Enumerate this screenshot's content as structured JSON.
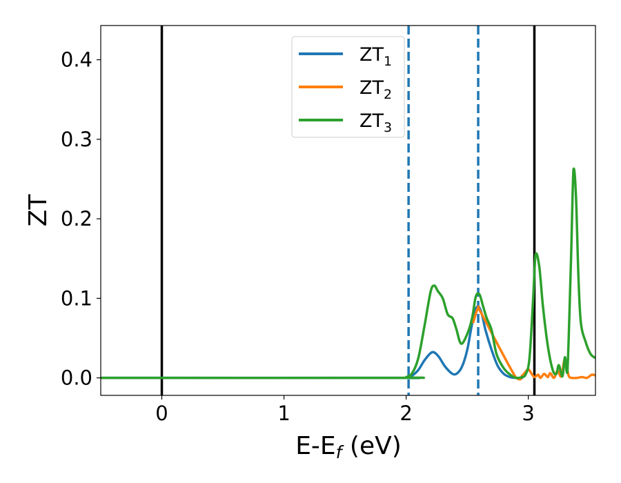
{
  "chart_data": {
    "type": "line",
    "xlabel": "E-E",
    "xlabel_sub": "f",
    "xlabel_unit": " (eV)",
    "ylabel": "ZT",
    "xlim": [
      -0.5,
      3.55
    ],
    "ylim": [
      -0.022,
      0.443
    ],
    "xticks": [
      0,
      1,
      2,
      3
    ],
    "xtick_labels": [
      "0",
      "1",
      "2",
      "3"
    ],
    "yticks": [
      0.0,
      0.1,
      0.2,
      0.3,
      0.4
    ],
    "ytick_labels": [
      "0.0",
      "0.1",
      "0.2",
      "0.3",
      "0.4"
    ],
    "grid": false,
    "legend_position": "top-center",
    "vertical_lines": [
      {
        "x": 0.0,
        "style": "solid",
        "color": "#000000"
      },
      {
        "x": 3.05,
        "style": "solid",
        "color": "#000000"
      },
      {
        "x": 2.02,
        "style": "dashed",
        "color": "#1f77b4"
      },
      {
        "x": 2.59,
        "style": "dashed",
        "color": "#1f77b4"
      }
    ],
    "series": [
      {
        "name": "ZT",
        "name_sub": "1",
        "color": "#1f77b4",
        "x": [
          -0.5,
          1.9,
          2.0,
          2.05,
          2.1,
          2.15,
          2.2,
          2.23,
          2.27,
          2.32,
          2.38,
          2.42,
          2.46,
          2.5,
          2.53,
          2.56,
          2.59,
          2.62,
          2.65,
          2.7,
          2.75,
          2.8,
          2.85,
          2.9,
          2.95
        ],
        "y": [
          0.0,
          0.0,
          0.0,
          0.003,
          0.01,
          0.022,
          0.031,
          0.032,
          0.026,
          0.014,
          0.005,
          0.006,
          0.015,
          0.035,
          0.06,
          0.082,
          0.09,
          0.08,
          0.06,
          0.035,
          0.015,
          0.005,
          0.001,
          0.0,
          0.0
        ]
      },
      {
        "name": "ZT",
        "name_sub": "2",
        "color": "#ff7f0e",
        "x": [
          2.55,
          2.59,
          2.62,
          2.9,
          2.95,
          2.98,
          3.0,
          3.02,
          3.05,
          3.08,
          3.1,
          3.13,
          3.16,
          3.18,
          3.21,
          3.24,
          3.27,
          3.3,
          3.33,
          3.36,
          3.4,
          3.44,
          3.48,
          3.52,
          3.55
        ],
        "y": [
          0.07,
          0.088,
          0.08,
          0.0,
          0.003,
          0.008,
          0.011,
          0.007,
          0.001,
          0.004,
          0.0,
          0.005,
          0.001,
          0.006,
          0.0,
          0.009,
          0.002,
          0.024,
          0.003,
          0.0,
          0.0,
          0.001,
          0.0,
          0.004,
          0.003
        ]
      },
      {
        "name": "ZT",
        "name_sub": "3",
        "color": "#2ca02c",
        "x": [
          -0.5,
          1.95,
          2.0,
          2.05,
          2.1,
          2.15,
          2.2,
          2.23,
          2.26,
          2.3,
          2.34,
          2.38,
          2.41,
          2.45,
          2.5,
          2.54,
          2.57,
          2.6,
          2.63,
          2.66,
          2.7,
          2.74,
          2.8,
          2.86,
          2.9,
          2.95,
          2.98,
          3.01,
          3.04,
          3.06,
          3.09,
          3.12,
          3.16,
          3.2,
          3.23,
          3.25,
          3.28,
          3.3,
          3.32,
          3.35,
          3.37,
          3.39,
          3.41,
          3.43,
          3.47,
          3.51,
          3.55
        ],
        "y": [
          0.0,
          0.0,
          0.001,
          0.006,
          0.025,
          0.065,
          0.108,
          0.116,
          0.109,
          0.1,
          0.08,
          0.075,
          0.062,
          0.043,
          0.055,
          0.075,
          0.102,
          0.105,
          0.09,
          0.075,
          0.06,
          0.03,
          0.012,
          0.003,
          0.0,
          0.001,
          0.005,
          0.025,
          0.1,
          0.155,
          0.14,
          0.09,
          0.04,
          0.01,
          0.005,
          0.016,
          0.002,
          0.026,
          0.007,
          0.15,
          0.262,
          0.23,
          0.13,
          0.07,
          0.045,
          0.03,
          0.025
        ]
      }
    ]
  }
}
